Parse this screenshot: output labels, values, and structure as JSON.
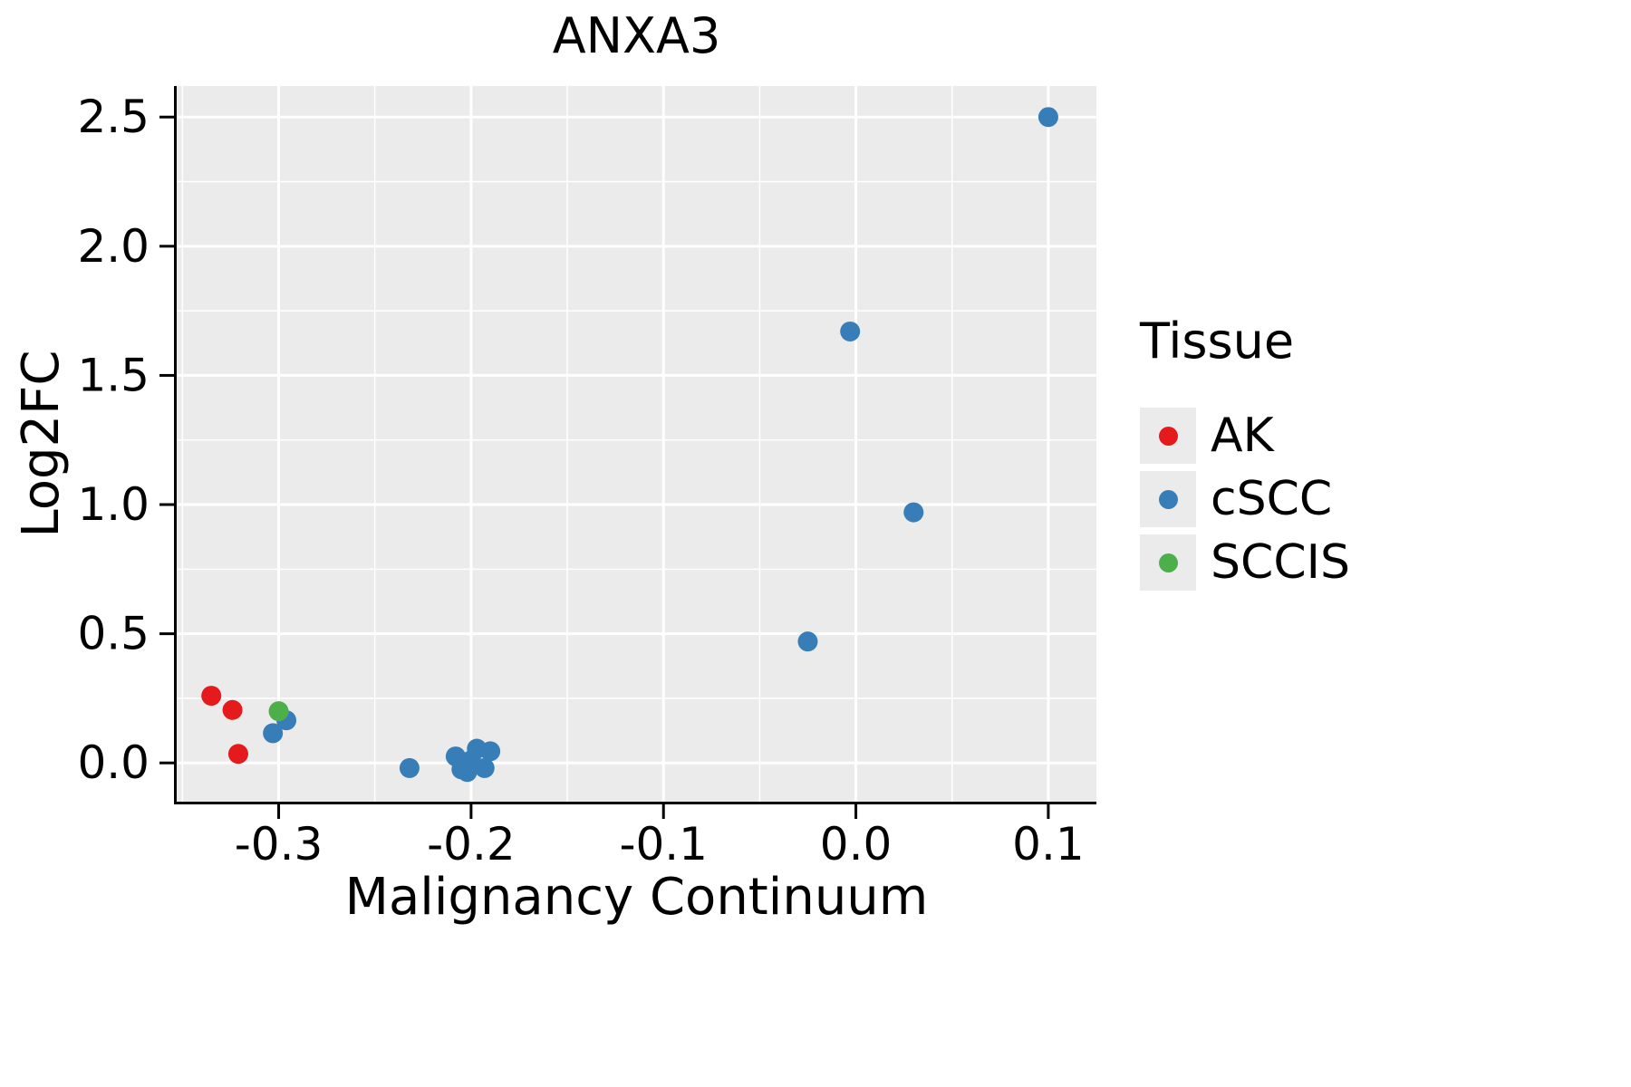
{
  "chart_data": {
    "type": "scatter",
    "title": "ANXA3",
    "xlabel": "Malignancy Continuum",
    "ylabel": "Log2FC",
    "xlim": [
      -0.353,
      0.125
    ],
    "ylim": [
      -0.15,
      2.62
    ],
    "xticks": [
      -0.3,
      -0.2,
      -0.1,
      0.0,
      0.1
    ],
    "xtick_labels": [
      "-0.3",
      "-0.2",
      "-0.1",
      "0.0",
      "0.1"
    ],
    "yticks": [
      0.0,
      0.5,
      1.0,
      1.5,
      2.0,
      2.5
    ],
    "ytick_labels": [
      "0.0",
      "0.5",
      "1.0",
      "1.5",
      "2.0",
      "2.5"
    ],
    "grid": true,
    "panel_color": "#ebebeb",
    "grid_color": "#ffffff",
    "legend": {
      "title": "Tissue",
      "position": "right",
      "entries": [
        {
          "label": "AK",
          "color": "#e41a1c"
        },
        {
          "label": "cSCC",
          "color": "#377eb8"
        },
        {
          "label": "SCCIS",
          "color": "#4daf4a"
        }
      ]
    },
    "series": [
      {
        "name": "AK",
        "color": "#e41a1c",
        "points": [
          [
            -0.335,
            0.26
          ],
          [
            -0.324,
            0.205
          ],
          [
            -0.321,
            0.035
          ]
        ]
      },
      {
        "name": "cSCC",
        "color": "#377eb8",
        "points": [
          [
            -0.303,
            0.115
          ],
          [
            -0.296,
            0.165
          ],
          [
            -0.232,
            -0.02
          ],
          [
            -0.208,
            0.025
          ],
          [
            -0.205,
            -0.025
          ],
          [
            -0.202,
            -0.035
          ],
          [
            -0.2,
            0.01
          ],
          [
            -0.197,
            0.055
          ],
          [
            -0.193,
            -0.02
          ],
          [
            -0.19,
            0.045
          ],
          [
            -0.025,
            0.47
          ],
          [
            -0.003,
            1.67
          ],
          [
            0.03,
            0.97
          ],
          [
            0.1,
            2.5
          ]
        ]
      },
      {
        "name": "SCCIS",
        "color": "#4daf4a",
        "points": [
          [
            -0.3,
            0.2
          ]
        ]
      }
    ]
  }
}
